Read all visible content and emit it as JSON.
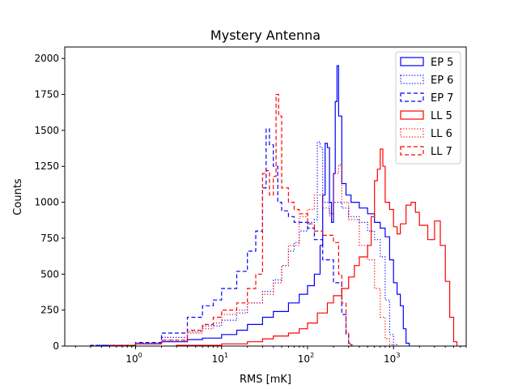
{
  "chart_data": {
    "type": "line",
    "title": "Mystery Antenna",
    "xlabel": "RMS [mK]",
    "ylabel": "Counts",
    "x_scale": "log",
    "xlim": [
      0.15,
      7000
    ],
    "ylim": [
      0,
      2080
    ],
    "grid": false,
    "legend_position": "top-right",
    "x_ticks": [
      {
        "value": 1,
        "label": "10",
        "sup": "0"
      },
      {
        "value": 10,
        "label": "10",
        "sup": "1"
      },
      {
        "value": 100,
        "label": "10",
        "sup": "2"
      },
      {
        "value": 1000,
        "label": "10",
        "sup": "3"
      }
    ],
    "y_ticks": [
      {
        "value": 0,
        "label": "0"
      },
      {
        "value": 250,
        "label": "250"
      },
      {
        "value": 500,
        "label": "500"
      },
      {
        "value": 750,
        "label": "750"
      },
      {
        "value": 1000,
        "label": "1000"
      },
      {
        "value": 1250,
        "label": "1250"
      },
      {
        "value": 1500,
        "label": "1500"
      },
      {
        "value": 1750,
        "label": "1750"
      },
      {
        "value": 2000,
        "label": "2000"
      }
    ],
    "series": [
      {
        "name": "EP 5",
        "color": "#0000ff",
        "dash": "solid",
        "points": [
          [
            0.4,
            5
          ],
          [
            1,
            15
          ],
          [
            2,
            30
          ],
          [
            4,
            45
          ],
          [
            6,
            55
          ],
          [
            10,
            80
          ],
          [
            15,
            110
          ],
          [
            20,
            150
          ],
          [
            30,
            200
          ],
          [
            40,
            240
          ],
          [
            60,
            300
          ],
          [
            80,
            360
          ],
          [
            100,
            420
          ],
          [
            120,
            500
          ],
          [
            140,
            700
          ],
          [
            150,
            1050
          ],
          [
            160,
            1410
          ],
          [
            170,
            1380
          ],
          [
            180,
            1000
          ],
          [
            190,
            860
          ],
          [
            200,
            1200
          ],
          [
            210,
            1700
          ],
          [
            220,
            1950
          ],
          [
            230,
            1600
          ],
          [
            250,
            1130
          ],
          [
            280,
            1050
          ],
          [
            320,
            1000
          ],
          [
            400,
            960
          ],
          [
            500,
            920
          ],
          [
            600,
            860
          ],
          [
            700,
            820
          ],
          [
            800,
            760
          ],
          [
            900,
            600
          ],
          [
            1000,
            440
          ],
          [
            1100,
            360
          ],
          [
            1200,
            280
          ],
          [
            1300,
            120
          ],
          [
            1400,
            20
          ]
        ]
      },
      {
        "name": "EP 6",
        "color": "#0000ff",
        "dash": "dotted",
        "points": [
          [
            0.3,
            5
          ],
          [
            1,
            20
          ],
          [
            2,
            60
          ],
          [
            4,
            100
          ],
          [
            6,
            140
          ],
          [
            10,
            180
          ],
          [
            15,
            230
          ],
          [
            20,
            300
          ],
          [
            30,
            380
          ],
          [
            40,
            460
          ],
          [
            50,
            560
          ],
          [
            60,
            660
          ],
          [
            70,
            720
          ],
          [
            80,
            800
          ],
          [
            100,
            860
          ],
          [
            120,
            880
          ],
          [
            130,
            1420
          ],
          [
            140,
            1380
          ],
          [
            150,
            1000
          ],
          [
            180,
            920
          ],
          [
            200,
            1000
          ],
          [
            250,
            960
          ],
          [
            300,
            900
          ],
          [
            400,
            860
          ],
          [
            500,
            800
          ],
          [
            600,
            740
          ],
          [
            700,
            620
          ],
          [
            800,
            320
          ],
          [
            900,
            80
          ],
          [
            1000,
            10
          ]
        ]
      },
      {
        "name": "EP 7",
        "color": "#0000ff",
        "dash": "dashed",
        "points": [
          [
            0.3,
            5
          ],
          [
            1,
            25
          ],
          [
            2,
            90
          ],
          [
            4,
            200
          ],
          [
            6,
            280
          ],
          [
            8,
            320
          ],
          [
            10,
            400
          ],
          [
            15,
            520
          ],
          [
            20,
            660
          ],
          [
            25,
            800
          ],
          [
            30,
            1100
          ],
          [
            33,
            1510
          ],
          [
            36,
            1400
          ],
          [
            40,
            1250
          ],
          [
            45,
            1000
          ],
          [
            50,
            940
          ],
          [
            60,
            900
          ],
          [
            70,
            860
          ],
          [
            80,
            860
          ],
          [
            100,
            820
          ],
          [
            120,
            740
          ],
          [
            150,
            600
          ],
          [
            200,
            440
          ],
          [
            250,
            220
          ],
          [
            280,
            80
          ],
          [
            300,
            20
          ]
        ]
      },
      {
        "name": "LL 5",
        "color": "#ff0000",
        "dash": "solid",
        "points": [
          [
            3,
            5
          ],
          [
            10,
            15
          ],
          [
            20,
            30
          ],
          [
            30,
            50
          ],
          [
            40,
            70
          ],
          [
            60,
            90
          ],
          [
            80,
            120
          ],
          [
            100,
            160
          ],
          [
            130,
            230
          ],
          [
            170,
            300
          ],
          [
            200,
            350
          ],
          [
            250,
            400
          ],
          [
            300,
            480
          ],
          [
            350,
            560
          ],
          [
            400,
            620
          ],
          [
            500,
            700
          ],
          [
            550,
            900
          ],
          [
            600,
            1150
          ],
          [
            650,
            1230
          ],
          [
            700,
            1370
          ],
          [
            750,
            1250
          ],
          [
            800,
            1000
          ],
          [
            900,
            950
          ],
          [
            1000,
            830
          ],
          [
            1100,
            780
          ],
          [
            1200,
            850
          ],
          [
            1400,
            980
          ],
          [
            1600,
            1000
          ],
          [
            1800,
            930
          ],
          [
            2000,
            840
          ],
          [
            2500,
            740
          ],
          [
            3000,
            870
          ],
          [
            3500,
            700
          ],
          [
            4000,
            450
          ],
          [
            4500,
            200
          ],
          [
            5000,
            30
          ]
        ]
      },
      {
        "name": "LL 6",
        "color": "#ff0000",
        "dash": "dotted",
        "points": [
          [
            0.5,
            5
          ],
          [
            1,
            15
          ],
          [
            2,
            40
          ],
          [
            4,
            90
          ],
          [
            6,
            120
          ],
          [
            8,
            160
          ],
          [
            10,
            220
          ],
          [
            15,
            250
          ],
          [
            20,
            300
          ],
          [
            30,
            360
          ],
          [
            40,
            440
          ],
          [
            50,
            560
          ],
          [
            60,
            700
          ],
          [
            80,
            900
          ],
          [
            100,
            950
          ],
          [
            120,
            1050
          ],
          [
            150,
            960
          ],
          [
            180,
            900
          ],
          [
            200,
            1200
          ],
          [
            230,
            1260
          ],
          [
            250,
            1000
          ],
          [
            300,
            880
          ],
          [
            400,
            700
          ],
          [
            500,
            600
          ],
          [
            600,
            400
          ],
          [
            700,
            200
          ],
          [
            800,
            50
          ],
          [
            900,
            10
          ]
        ]
      },
      {
        "name": "LL 7",
        "color": "#ff0000",
        "dash": "dashed",
        "points": [
          [
            0.5,
            5
          ],
          [
            1,
            15
          ],
          [
            2,
            40
          ],
          [
            4,
            110
          ],
          [
            6,
            150
          ],
          [
            8,
            200
          ],
          [
            10,
            250
          ],
          [
            15,
            300
          ],
          [
            20,
            400
          ],
          [
            25,
            500
          ],
          [
            30,
            1200
          ],
          [
            33,
            1220
          ],
          [
            36,
            1050
          ],
          [
            40,
            1180
          ],
          [
            43,
            1750
          ],
          [
            46,
            1600
          ],
          [
            50,
            1100
          ],
          [
            60,
            1000
          ],
          [
            70,
            950
          ],
          [
            80,
            920
          ],
          [
            100,
            850
          ],
          [
            120,
            800
          ],
          [
            150,
            770
          ],
          [
            200,
            720
          ],
          [
            230,
            500
          ],
          [
            250,
            300
          ],
          [
            280,
            100
          ],
          [
            300,
            10
          ]
        ]
      }
    ]
  }
}
